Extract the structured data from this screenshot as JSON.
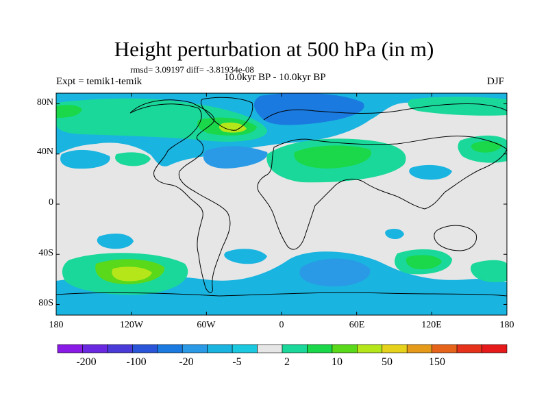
{
  "header": {
    "title": "Height perturbation at 500 hPa (in m)",
    "stats": "rmsd= 3.09197 diff= -3.81934e-08",
    "experiment": "Expt = temik1-temik",
    "period": "10.0kyr BP - 10.0kyr BP",
    "season": "DJF"
  },
  "axes": {
    "lat_labels": [
      "80N",
      "40N",
      "0",
      "40S",
      "80S"
    ],
    "lon_labels": [
      "180",
      "120W",
      "60W",
      "0",
      "60E",
      "120E",
      "180"
    ],
    "lat_values": [
      80,
      40,
      0,
      -40,
      -80
    ],
    "lon_values": [
      -180,
      -120,
      -60,
      0,
      60,
      120,
      180
    ]
  },
  "colorbar": {
    "colors": [
      "#8a1ae6",
      "#6a28e0",
      "#4a3ad8",
      "#2a55d8",
      "#1a7ae0",
      "#2a9ae6",
      "#1ab4e0",
      "#1ac8e0",
      "#e6e6e6",
      "#1ad89a",
      "#1ad84a",
      "#5ad81a",
      "#b4e61a",
      "#e6d21a",
      "#e69a1a",
      "#e6641a",
      "#e6321a",
      "#e61a1a"
    ],
    "labels": [
      "-200",
      "-100",
      "-20",
      "-5",
      "2",
      "10",
      "50",
      "150"
    ]
  }
}
